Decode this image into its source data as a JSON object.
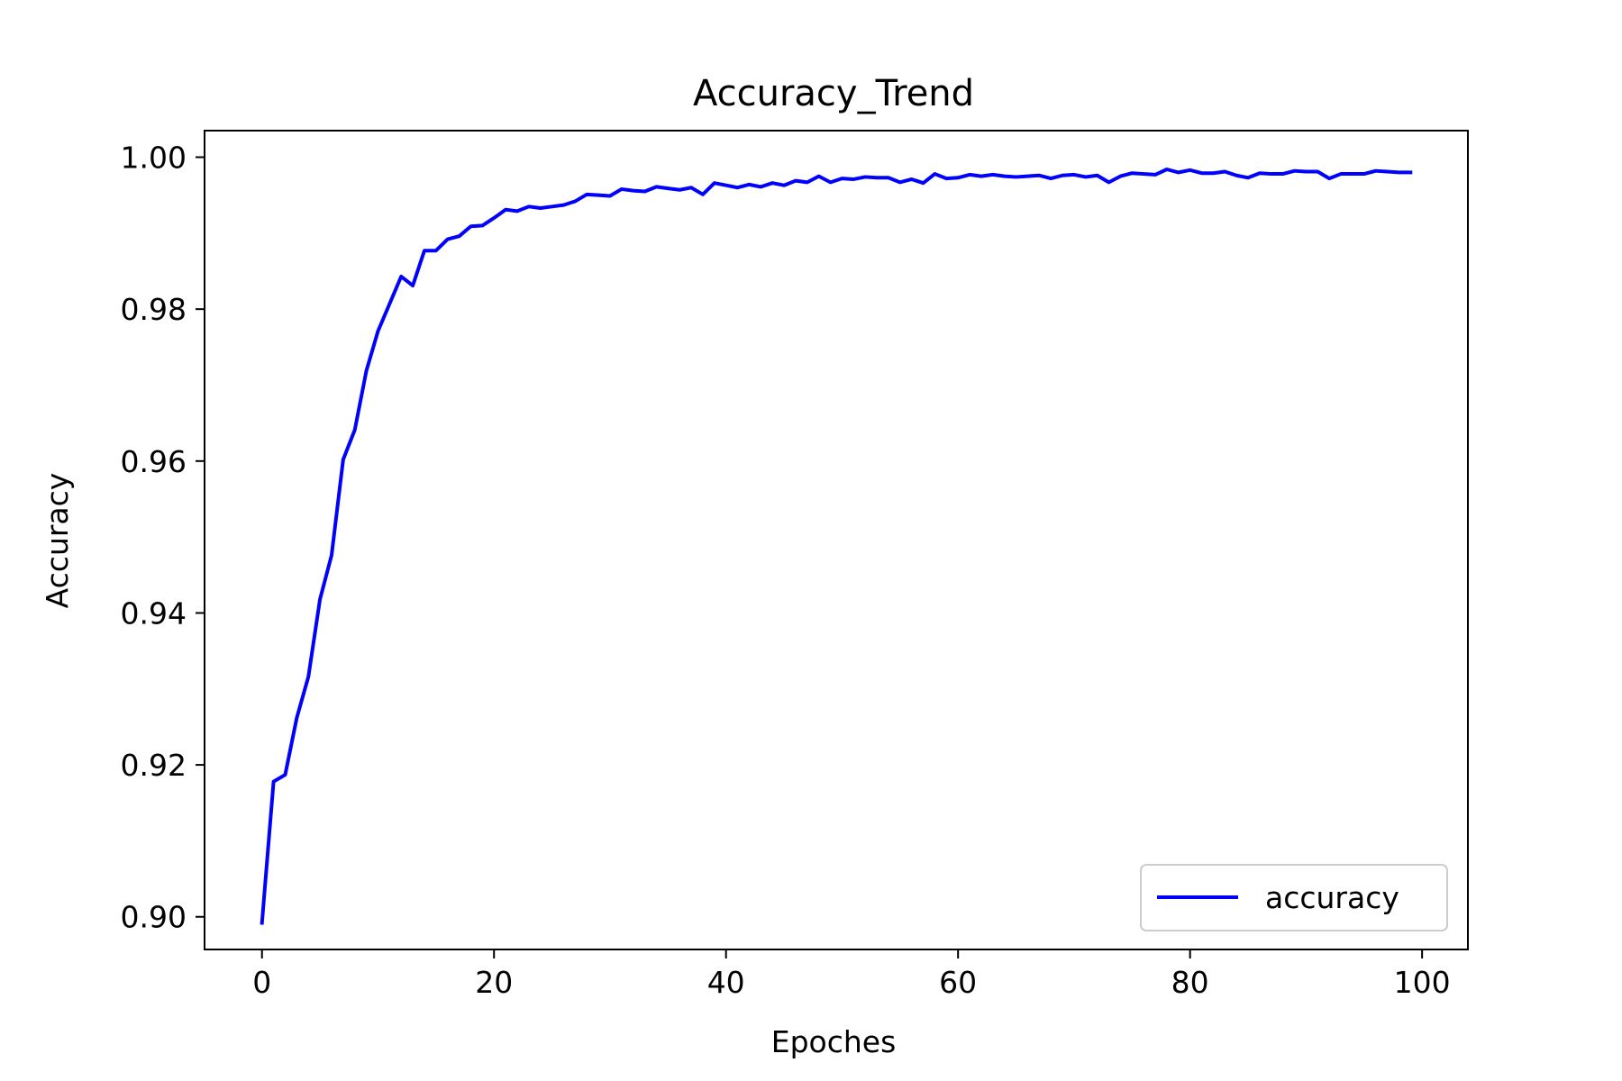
{
  "chart_data": {
    "type": "line",
    "title": "Accuracy_Trend",
    "xlabel": "Epoches",
    "ylabel": "Accuracy",
    "xlim": [
      -4.95,
      103.95
    ],
    "ylim": [
      0.8957,
      1.0035
    ],
    "xticks": [
      0,
      20,
      40,
      60,
      80,
      100
    ],
    "yticks": [
      0.9,
      0.92,
      0.94,
      0.96,
      0.98,
      1.0
    ],
    "xtick_labels": [
      "0",
      "20",
      "40",
      "60",
      "80",
      "100"
    ],
    "ytick_labels": [
      "0.90",
      "0.92",
      "0.94",
      "0.96",
      "0.98",
      "1.00"
    ],
    "grid": false,
    "legend_position": "lower-right",
    "series": [
      {
        "name": "accuracy",
        "color": "#0000ff",
        "x": [
          0,
          1,
          2,
          3,
          4,
          5,
          6,
          7,
          8,
          9,
          10,
          11,
          12,
          13,
          14,
          15,
          16,
          17,
          18,
          19,
          20,
          21,
          22,
          23,
          24,
          25,
          26,
          27,
          28,
          29,
          30,
          31,
          32,
          33,
          34,
          35,
          36,
          37,
          38,
          39,
          40,
          41,
          42,
          43,
          44,
          45,
          46,
          47,
          48,
          49,
          50,
          51,
          52,
          53,
          54,
          55,
          56,
          57,
          58,
          59,
          60,
          61,
          62,
          63,
          64,
          65,
          66,
          67,
          68,
          69,
          70,
          71,
          72,
          73,
          74,
          75,
          76,
          77,
          78,
          79,
          80,
          81,
          82,
          83,
          84,
          85,
          86,
          87,
          88,
          89,
          90,
          91,
          92,
          93,
          94,
          95,
          96,
          97,
          98,
          99
        ],
        "values": [
          0.8992,
          0.9178,
          0.9187,
          0.9262,
          0.9316,
          0.9418,
          0.9476,
          0.9602,
          0.9641,
          0.9719,
          0.9771,
          0.9807,
          0.9843,
          0.9831,
          0.9877,
          0.9877,
          0.9892,
          0.9896,
          0.9909,
          0.991,
          0.992,
          0.9931,
          0.9929,
          0.9935,
          0.9933,
          0.9935,
          0.9937,
          0.9942,
          0.9951,
          0.995,
          0.9949,
          0.9958,
          0.9956,
          0.9955,
          0.9961,
          0.9959,
          0.9957,
          0.996,
          0.9951,
          0.9966,
          0.9963,
          0.996,
          0.9964,
          0.9961,
          0.9966,
          0.9963,
          0.9969,
          0.9967,
          0.9975,
          0.9967,
          0.9972,
          0.9971,
          0.9974,
          0.9973,
          0.9973,
          0.9967,
          0.9971,
          0.9966,
          0.9978,
          0.9972,
          0.9973,
          0.9977,
          0.9975,
          0.9977,
          0.9975,
          0.9974,
          0.9975,
          0.9976,
          0.9972,
          0.9976,
          0.9977,
          0.9974,
          0.9976,
          0.9967,
          0.9975,
          0.9979,
          0.9978,
          0.9977,
          0.9984,
          0.998,
          0.9983,
          0.9979,
          0.9979,
          0.9981,
          0.9976,
          0.9973,
          0.9979,
          0.9978,
          0.9978,
          0.9982,
          0.9981,
          0.9981,
          0.9972,
          0.9978,
          0.9978,
          0.9978,
          0.9982,
          0.9981,
          0.998,
          0.998
        ]
      }
    ]
  }
}
